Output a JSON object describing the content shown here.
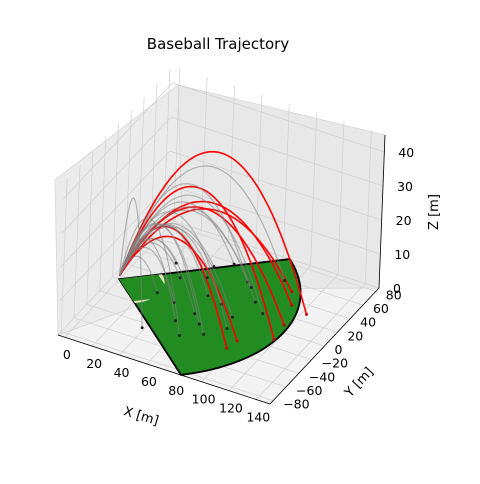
{
  "chart_data": {
    "type": "line",
    "title": "Baseball Trajectory",
    "xlabel": "X [m]",
    "ylabel": "Y [m]",
    "zlabel": "Z [m]",
    "x_ticks": [
      "0",
      "20",
      "40",
      "60",
      "80",
      "100",
      "120",
      "140"
    ],
    "y_ticks": [
      "80",
      "60",
      "40",
      "20",
      "0",
      "−20",
      "−40",
      "−60",
      "−80"
    ],
    "z_ticks": [
      "40",
      "30",
      "20",
      "10",
      "0"
    ],
    "xlim": [
      -5,
      150
    ],
    "ylim": [
      -85,
      85
    ],
    "zlim": [
      0,
      45
    ],
    "grid": true,
    "field": {
      "fence_distance": 120,
      "infield_color": "#f5e6c8",
      "grass_color": "#228b22"
    },
    "series": [
      {
        "color": "#ff0000",
        "trajectories": [
          {
            "end": [
              125,
              25
            ],
            "apex": 42
          },
          {
            "end": [
              120,
              -15
            ],
            "apex": 35
          },
          {
            "end": [
              112,
              30
            ],
            "apex": 26
          },
          {
            "end": [
              118,
              5
            ],
            "apex": 27
          },
          {
            "end": [
              105,
              45
            ],
            "apex": 22
          },
          {
            "end": [
              100,
              -30
            ],
            "apex": 20
          },
          {
            "end": [
              98,
              -42
            ],
            "apex": 24
          }
        ]
      },
      {
        "color": "#808080",
        "trajectories": [
          {
            "end": [
              40,
              -50
            ],
            "apex": 30
          },
          {
            "end": [
              95,
              55
            ],
            "apex": 33
          },
          {
            "end": [
              75,
              40
            ],
            "apex": 28
          },
          {
            "end": [
              70,
              -25
            ],
            "apex": 22
          },
          {
            "end": [
              60,
              10
            ],
            "apex": 18
          },
          {
            "end": [
              85,
              -5
            ],
            "apex": 20
          },
          {
            "end": [
              50,
              30
            ],
            "apex": 15
          },
          {
            "end": [
              45,
              -10
            ],
            "apex": 12
          },
          {
            "end": [
              65,
              -45
            ],
            "apex": 25
          },
          {
            "end": [
              90,
              20
            ],
            "apex": 24
          },
          {
            "end": [
              35,
              20
            ],
            "apex": 10
          },
          {
            "end": [
              55,
              -30
            ],
            "apex": 17
          },
          {
            "end": [
              80,
              35
            ],
            "apex": 21
          },
          {
            "end": [
              30,
              -5
            ],
            "apex": 8
          },
          {
            "end": [
              100,
              10
            ],
            "apex": 29
          },
          {
            "end": [
              72,
              5
            ],
            "apex": 19
          },
          {
            "end": [
              48,
              45
            ],
            "apex": 14
          },
          {
            "end": [
              62,
              -15
            ],
            "apex": 16
          },
          {
            "end": [
              88,
              -20
            ],
            "apex": 26
          },
          {
            "end": [
              25,
              35
            ],
            "apex": 9
          },
          {
            "end": [
              58,
              55
            ],
            "apex": 20
          },
          {
            "end": [
              78,
              -35
            ],
            "apex": 23
          }
        ]
      }
    ]
  }
}
